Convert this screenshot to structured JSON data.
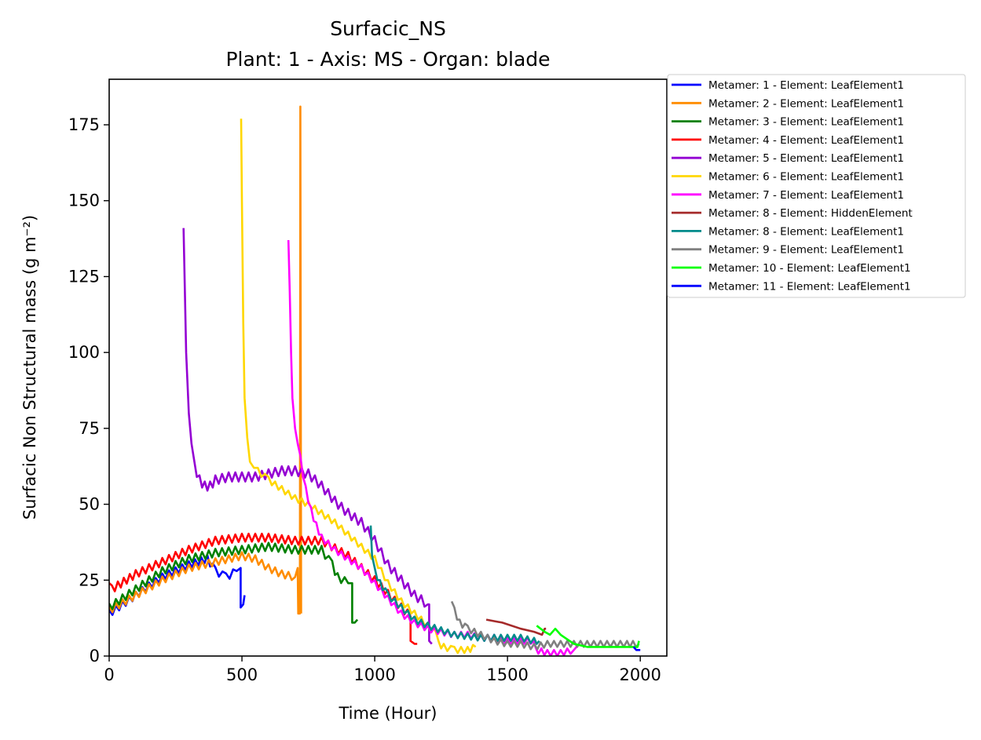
{
  "chart_data": {
    "type": "line",
    "title": "Surfacic_NS",
    "subtitle": "Plant: 1 - Axis: MS - Organ: blade",
    "xlabel": "Time (Hour)",
    "ylabel": "Surfacic Non Structural mass (g m⁻²)",
    "xlim": [
      0,
      2100
    ],
    "ylim": [
      0,
      190
    ],
    "xticks": [
      0,
      500,
      1000,
      1500,
      2000
    ],
    "xtick_labels": [
      "0",
      "500",
      "1000",
      "1500",
      "2000"
    ],
    "yticks": [
      0,
      25,
      50,
      75,
      100,
      125,
      150,
      175
    ],
    "ytick_labels": [
      "0",
      "25",
      "50",
      "75",
      "100",
      "125",
      "150",
      "175"
    ],
    "grid": false,
    "legend_position": "outside-right",
    "series": [
      {
        "name": "Metamer: 1 - Element: LeafElement1",
        "color": "#0000ff",
        "osc": 1.2,
        "points": [
          [
            0,
            14
          ],
          [
            100,
            20
          ],
          [
            200,
            26
          ],
          [
            300,
            30
          ],
          [
            370,
            32
          ],
          [
            400,
            28
          ],
          [
            440,
            26
          ],
          [
            480,
            28
          ],
          [
            495,
            29
          ],
          [
            495,
            16
          ],
          [
            505,
            17
          ],
          [
            510,
            20
          ]
        ]
      },
      {
        "name": "Metamer: 2 - Element: LeafElement1",
        "color": "#ff8c00",
        "osc": 1.2,
        "points": [
          [
            0,
            15
          ],
          [
            100,
            20
          ],
          [
            200,
            25
          ],
          [
            300,
            29
          ],
          [
            400,
            31
          ],
          [
            450,
            32
          ],
          [
            500,
            33
          ],
          [
            550,
            32
          ],
          [
            600,
            29
          ],
          [
            650,
            27
          ],
          [
            700,
            26
          ],
          [
            710,
            29
          ],
          [
            712,
            14
          ],
          [
            718,
            14
          ],
          [
            720,
            181
          ],
          [
            723,
            14
          ]
        ]
      },
      {
        "name": "Metamer: 3 - Element: LeafElement1",
        "color": "#008000",
        "osc": 1.3,
        "points": [
          [
            0,
            16
          ],
          [
            100,
            22
          ],
          [
            200,
            28
          ],
          [
            300,
            32
          ],
          [
            400,
            34
          ],
          [
            500,
            35
          ],
          [
            600,
            36
          ],
          [
            700,
            35
          ],
          [
            800,
            35
          ],
          [
            840,
            30
          ],
          [
            860,
            26
          ],
          [
            900,
            24
          ],
          [
            915,
            24
          ],
          [
            915,
            11
          ],
          [
            925,
            11
          ],
          [
            935,
            12
          ]
        ]
      },
      {
        "name": "Metamer: 4 - Element: LeafElement1",
        "color": "#ff0000",
        "osc": 1.3,
        "points": [
          [
            0,
            24
          ],
          [
            10,
            22
          ],
          [
            100,
            27
          ],
          [
            200,
            31
          ],
          [
            300,
            35
          ],
          [
            400,
            38
          ],
          [
            500,
            39
          ],
          [
            600,
            39
          ],
          [
            700,
            38
          ],
          [
            800,
            38
          ],
          [
            900,
            33
          ],
          [
            1000,
            25
          ],
          [
            1100,
            16
          ],
          [
            1135,
            13
          ],
          [
            1135,
            5
          ],
          [
            1150,
            4
          ],
          [
            1160,
            4
          ]
        ]
      },
      {
        "name": "Metamer: 5 - Element: LeafElement1",
        "color": "#9400d3",
        "osc": 1.5,
        "points": [
          [
            280,
            141
          ],
          [
            285,
            120
          ],
          [
            290,
            100
          ],
          [
            300,
            80
          ],
          [
            310,
            70
          ],
          [
            320,
            63
          ],
          [
            340,
            58
          ],
          [
            360,
            56
          ],
          [
            380,
            56
          ],
          [
            400,
            58
          ],
          [
            450,
            59
          ],
          [
            500,
            59
          ],
          [
            550,
            59
          ],
          [
            600,
            60
          ],
          [
            650,
            61
          ],
          [
            700,
            61
          ],
          [
            750,
            60
          ],
          [
            800,
            56
          ],
          [
            850,
            51
          ],
          [
            900,
            47
          ],
          [
            950,
            44
          ],
          [
            1000,
            38
          ],
          [
            1050,
            30
          ],
          [
            1100,
            25
          ],
          [
            1150,
            20
          ],
          [
            1200,
            17
          ],
          [
            1205,
            17
          ],
          [
            1205,
            5
          ],
          [
            1215,
            4
          ]
        ]
      },
      {
        "name": "Metamer: 6 - Element: LeafElement1",
        "color": "#ffd700",
        "osc": 1.0,
        "points": [
          [
            497,
            177
          ],
          [
            500,
            150
          ],
          [
            505,
            110
          ],
          [
            510,
            85
          ],
          [
            520,
            72
          ],
          [
            530,
            64
          ],
          [
            545,
            62
          ],
          [
            560,
            61
          ],
          [
            600,
            58
          ],
          [
            650,
            55
          ],
          [
            700,
            52
          ],
          [
            750,
            50
          ],
          [
            800,
            47
          ],
          [
            850,
            44
          ],
          [
            900,
            40
          ],
          [
            950,
            36
          ],
          [
            1000,
            32
          ],
          [
            1050,
            24
          ],
          [
            1100,
            18
          ],
          [
            1150,
            14
          ],
          [
            1200,
            10
          ],
          [
            1230,
            8
          ],
          [
            1240,
            4
          ],
          [
            1260,
            3
          ],
          [
            1300,
            2
          ],
          [
            1350,
            2
          ],
          [
            1380,
            3
          ]
        ]
      },
      {
        "name": "Metamer: 7 - Element: LeafElement1",
        "color": "#ff00ff",
        "osc": 1.0,
        "points": [
          [
            675,
            137
          ],
          [
            680,
            120
          ],
          [
            685,
            100
          ],
          [
            690,
            85
          ],
          [
            700,
            75
          ],
          [
            710,
            70
          ],
          [
            720,
            65
          ],
          [
            740,
            55
          ],
          [
            760,
            48
          ],
          [
            780,
            43
          ],
          [
            800,
            39
          ],
          [
            850,
            35
          ],
          [
            900,
            32
          ],
          [
            950,
            29
          ],
          [
            1000,
            24
          ],
          [
            1050,
            19
          ],
          [
            1100,
            14
          ],
          [
            1150,
            11
          ],
          [
            1200,
            9
          ],
          [
            1250,
            8
          ],
          [
            1300,
            7
          ],
          [
            1350,
            7
          ],
          [
            1400,
            6
          ],
          [
            1450,
            6
          ],
          [
            1500,
            5
          ],
          [
            1550,
            5
          ],
          [
            1600,
            5
          ],
          [
            1605,
            2
          ],
          [
            1650,
            1
          ],
          [
            1700,
            1
          ],
          [
            1750,
            2
          ],
          [
            1760,
            3
          ]
        ]
      },
      {
        "name": "Metamer: 8 - Element: HiddenElement",
        "color": "#a52a2a",
        "osc": 0,
        "points": [
          [
            1420,
            12
          ],
          [
            1480,
            11
          ],
          [
            1550,
            9
          ],
          [
            1600,
            8
          ],
          [
            1630,
            7
          ],
          [
            1640,
            9
          ],
          [
            1645,
            9
          ]
        ]
      },
      {
        "name": "Metamer: 8 - Element: LeafElement1",
        "color": "#008b8b",
        "osc": 1.0,
        "points": [
          [
            985,
            43
          ],
          [
            990,
            33
          ],
          [
            1000,
            28
          ],
          [
            1020,
            24
          ],
          [
            1050,
            20
          ],
          [
            1100,
            16
          ],
          [
            1150,
            12
          ],
          [
            1200,
            10
          ],
          [
            1300,
            7
          ],
          [
            1400,
            6
          ],
          [
            1450,
            6
          ],
          [
            1500,
            6
          ],
          [
            1550,
            6
          ],
          [
            1600,
            5
          ],
          [
            1620,
            5
          ]
        ]
      },
      {
        "name": "Metamer: 9 - Element: LeafElement1",
        "color": "#808080",
        "osc": 1.0,
        "points": [
          [
            1290,
            18
          ],
          [
            1300,
            15
          ],
          [
            1320,
            11
          ],
          [
            1350,
            9
          ],
          [
            1400,
            7
          ],
          [
            1450,
            5
          ],
          [
            1500,
            4
          ],
          [
            1550,
            4
          ],
          [
            1600,
            3
          ],
          [
            1650,
            4
          ],
          [
            1700,
            4
          ],
          [
            1750,
            4
          ],
          [
            1800,
            4
          ],
          [
            1850,
            4
          ],
          [
            1900,
            4
          ],
          [
            1950,
            4
          ],
          [
            1995,
            4
          ]
        ]
      },
      {
        "name": "Metamer: 10 - Element: LeafElement1",
        "color": "#00ff00",
        "osc": 0,
        "points": [
          [
            1610,
            10
          ],
          [
            1640,
            8
          ],
          [
            1660,
            7
          ],
          [
            1680,
            9
          ],
          [
            1700,
            7
          ],
          [
            1750,
            4
          ],
          [
            1800,
            3
          ],
          [
            1850,
            3
          ],
          [
            1900,
            3
          ],
          [
            1950,
            3
          ],
          [
            1990,
            3
          ],
          [
            1995,
            5
          ]
        ]
      },
      {
        "name": "Metamer: 11 - Element: LeafElement1",
        "color": "#0000ff",
        "osc": 0,
        "points": [
          [
            1975,
            3
          ],
          [
            1985,
            2
          ],
          [
            2000,
            2
          ]
        ]
      }
    ]
  }
}
